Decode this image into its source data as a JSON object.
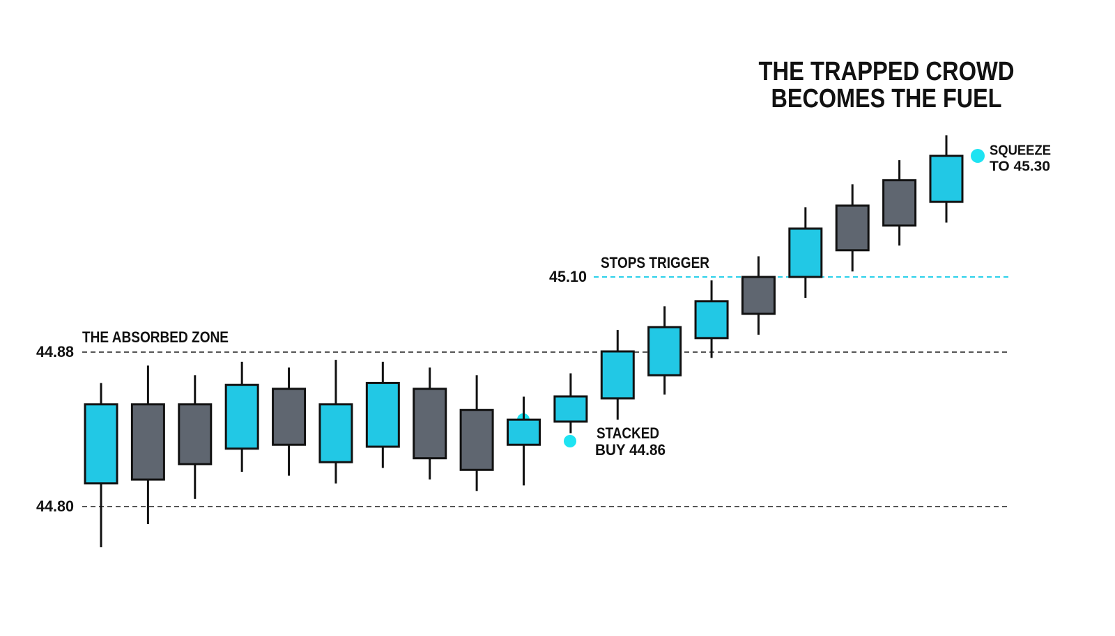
{
  "chart_data": {
    "type": "candlestick",
    "title": [
      "THE TRAPPED CROWD",
      "BECOMES THE FUEL"
    ],
    "open": [
      44.812,
      44.853,
      44.853,
      44.83,
      44.861,
      44.823,
      44.831,
      44.861,
      44.85,
      44.832,
      44.844,
      44.856,
      44.868,
      44.921,
      45.1,
      45.1,
      45.218,
      45.26,
      45.224
    ],
    "high": [
      44.864,
      44.873,
      44.868,
      44.875,
      44.872,
      44.876,
      44.875,
      44.872,
      44.868,
      44.857,
      44.869,
      44.945,
      45.014,
      45.09,
      45.134,
      45.215,
      45.253,
      45.293,
      45.334
    ],
    "low": [
      44.779,
      44.791,
      44.804,
      44.818,
      44.816,
      44.812,
      44.82,
      44.814,
      44.808,
      44.811,
      44.838,
      44.845,
      44.858,
      44.877,
      44.931,
      45.039,
      45.109,
      45.152,
      45.19
    ],
    "close": [
      44.853,
      44.814,
      44.822,
      44.863,
      44.832,
      44.853,
      44.864,
      44.825,
      44.819,
      44.845,
      44.857,
      44.882,
      44.953,
      45.029,
      44.992,
      45.18,
      45.144,
      45.185,
      45.3
    ],
    "up_color": "#22c8e5",
    "down_color": "#5f6670",
    "yticks": [
      {
        "value": 44.8,
        "label": "44.80"
      },
      44.88,
      {
        "value": 45.1,
        "label": "45.10"
      }
    ],
    "annotations": [
      {
        "text": "THE ABSORBED ZONE"
      },
      {
        "text": "STOPS TRIGGER"
      },
      {
        "text": [
          "STACKED",
          "BUY 44.86"
        ]
      },
      {
        "text": [
          "SQUEEZE",
          "TO 45.30"
        ],
        "value": 45.3
      }
    ]
  }
}
